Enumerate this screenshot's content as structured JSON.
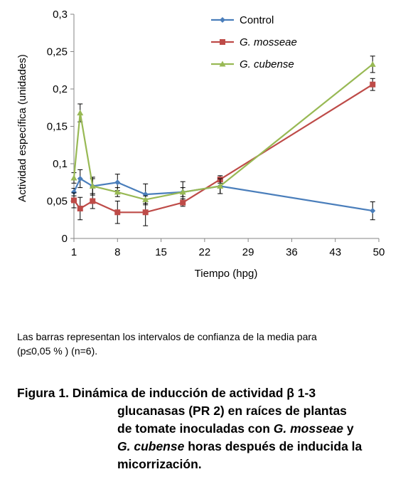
{
  "chart_data": {
    "type": "line",
    "xlabel": "Tiempo (hpg)",
    "ylabel": "Actividad específica (unidades)",
    "xlim": [
      1,
      50
    ],
    "ylim": [
      0,
      0.3
    ],
    "x_ticks": [
      "1",
      "8",
      "15",
      "22",
      "29",
      "36",
      "43",
      "50"
    ],
    "y_ticks": [
      "0",
      "0,05",
      "0,1",
      "0,15",
      "0,2",
      "0,25",
      "0,3"
    ],
    "grid": false,
    "legend_position": "top-right",
    "series": [
      {
        "name": "Control",
        "color": "#4a7ebb",
        "marker": "diamond",
        "points": [
          [
            1,
            0.062
          ],
          [
            2,
            0.08
          ],
          [
            4,
            0.07
          ],
          [
            8,
            0.075
          ],
          [
            12.5,
            0.059
          ],
          [
            18.5,
            0.062
          ],
          [
            24.5,
            0.07
          ],
          [
            49,
            0.037
          ]
        ],
        "errors": [
          0.005,
          0.012,
          0.01,
          0.011,
          0.014,
          0.014,
          0.01,
          0.012
        ]
      },
      {
        "name": "G. mosseae",
        "color": "#be4b48",
        "marker": "square",
        "points": [
          [
            1,
            0.051
          ],
          [
            2,
            0.04
          ],
          [
            4,
            0.05
          ],
          [
            8,
            0.035
          ],
          [
            12.5,
            0.035
          ],
          [
            18.5,
            0.048
          ],
          [
            24.5,
            0.079
          ],
          [
            49,
            0.206
          ]
        ],
        "errors": [
          0.01,
          0.015,
          0.01,
          0.015,
          0.018,
          0.005,
          0.005,
          0.008
        ]
      },
      {
        "name": "G. cubense",
        "color": "#98b954",
        "marker": "triangle",
        "points": [
          [
            1,
            0.081
          ],
          [
            2,
            0.168
          ],
          [
            4,
            0.07
          ],
          [
            8,
            0.062
          ],
          [
            12.5,
            0.052
          ],
          [
            18.5,
            0.062
          ],
          [
            24.5,
            0.07
          ],
          [
            49,
            0.233
          ]
        ],
        "errors": [
          0.007,
          0.012,
          0.012,
          0.006,
          0.005,
          0.006,
          0.01,
          0.011
        ]
      }
    ]
  },
  "note": {
    "line1": "Las barras representan los intervalos de confianza de la media para",
    "line2": "(p≤0,05 % ) (n=6)."
  },
  "caption": {
    "line1": "Figura 1. Dinámica de inducción de actividad β 1-3",
    "line2": "glucanasas (PR 2) en raíces de plantas",
    "line3a": "de tomate inoculadas con ",
    "line3b": "G. mosseae",
    "line3c": " y",
    "line4a": "G. cubense",
    "line4b": " horas después de inducida la",
    "line5": "micorrización."
  }
}
